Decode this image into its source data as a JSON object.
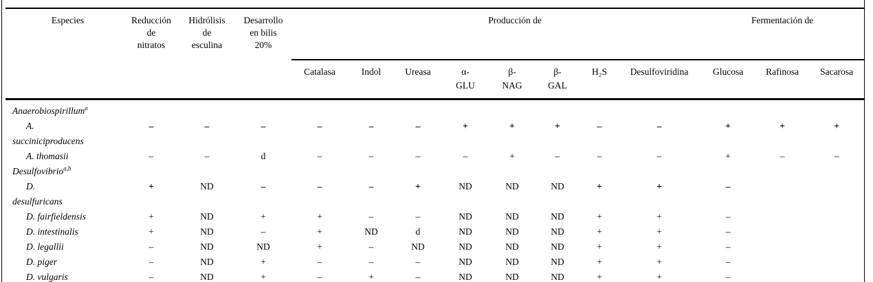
{
  "table": {
    "headers": {
      "especies": "Especies",
      "simple_cols": [
        {
          "id": "reduccion-de-nitratos",
          "lines": [
            "Reducción",
            "de",
            "nitratos"
          ]
        },
        {
          "id": "hidrolisis-de-esculina",
          "lines": [
            "Hidrólisis",
            "de",
            "esculina"
          ]
        },
        {
          "id": "desarrollo-en-bilis-20",
          "lines": [
            "Desarrollo",
            "en bilis",
            "20%"
          ]
        }
      ],
      "spanners": [
        {
          "label": "Producción de",
          "cols": [
            {
              "id": "catalasa",
              "lines": [
                "Catalasa"
              ]
            },
            {
              "id": "indol",
              "lines": [
                "Indol"
              ]
            },
            {
              "id": "ureasa",
              "lines": [
                "Ureasa"
              ]
            },
            {
              "id": "alfa-glu",
              "lines": [
                "α-",
                "GLU"
              ]
            },
            {
              "id": "beta-nag",
              "lines": [
                "β-",
                "NAG"
              ]
            },
            {
              "id": "beta-gal",
              "lines": [
                "β-",
                "GAL"
              ]
            },
            {
              "id": "h2s",
              "lines": [
                "H₂S"
              ]
            },
            {
              "id": "desulfoviridina",
              "lines": [
                "Desulfoviridina"
              ]
            }
          ]
        },
        {
          "label": "Fermentación de",
          "cols": [
            {
              "id": "glucosa",
              "lines": [
                "Glucosa"
              ]
            },
            {
              "id": "rafinosa",
              "lines": [
                "Rafinosa"
              ]
            },
            {
              "id": "sacarosa",
              "lines": [
                "Sacarosa"
              ]
            }
          ]
        }
      ]
    },
    "rows": [
      {
        "id": "anaerobiospirillum",
        "name_lines": [
          "Anaerobiospirillum"
        ],
        "sup": "a",
        "indent": false,
        "bold": false,
        "values": [
          "",
          "",
          "",
          "",
          "",
          "",
          "",
          "",
          "",
          "",
          "",
          "",
          "",
          ""
        ]
      },
      {
        "id": "a-succiniciproducens",
        "name_lines": [
          "A.",
          "succiniciproducens"
        ],
        "sup": "",
        "indent": true,
        "bold": true,
        "values": [
          "–",
          "–",
          "–",
          "–",
          "–",
          "–",
          "+",
          "+",
          "+",
          "–",
          "–",
          "+",
          "+",
          "+"
        ]
      },
      {
        "id": "a-thomasii",
        "name_lines": [
          "A. thomasii"
        ],
        "sup": "",
        "indent": true,
        "bold": false,
        "values": [
          "–",
          "–",
          "d",
          "–",
          "–",
          "–",
          "–",
          "+",
          "–",
          "–",
          "–",
          "+",
          "–",
          "–"
        ]
      },
      {
        "id": "desulfovibrio",
        "name_lines": [
          "Desulfovibrio"
        ],
        "sup": "a,b",
        "indent": false,
        "bold": false,
        "values": [
          "",
          "",
          "",
          "",
          "",
          "",
          "",
          "",
          "",
          "",
          "",
          "",
          "",
          ""
        ]
      },
      {
        "id": "d-desulfuricans",
        "name_lines": [
          "D.",
          "desulfuricans"
        ],
        "sup": "",
        "indent": true,
        "bold": true,
        "values": [
          "+",
          "ND",
          "–",
          "–",
          "–",
          "+",
          "ND",
          "ND",
          "ND",
          "+",
          "+",
          "–",
          "",
          ""
        ]
      },
      {
        "id": "d-fairfieldensis",
        "name_lines": [
          "D. fairfieldensis"
        ],
        "sup": "",
        "indent": true,
        "bold": false,
        "values": [
          "+",
          "ND",
          "+",
          "+",
          "–",
          "–",
          "ND",
          "ND",
          "ND",
          "+",
          "+",
          "–",
          "",
          ""
        ]
      },
      {
        "id": "d-intestinalis",
        "name_lines": [
          "D. intestinalis"
        ],
        "sup": "",
        "indent": true,
        "bold": false,
        "values": [
          "+",
          "ND",
          "–",
          "+",
          "ND",
          "d",
          "ND",
          "ND",
          "ND",
          "+",
          "+",
          "–",
          "",
          ""
        ]
      },
      {
        "id": "d-legallii",
        "name_lines": [
          "D. legallii"
        ],
        "sup": "",
        "indent": true,
        "bold": false,
        "values": [
          "–",
          "ND",
          "ND",
          "+",
          "–",
          "ND",
          "ND",
          "ND",
          "ND",
          "+",
          "+",
          "–",
          "",
          ""
        ]
      },
      {
        "id": "d-piger",
        "name_lines": [
          "D. piger"
        ],
        "sup": "",
        "indent": true,
        "bold": false,
        "values": [
          "–",
          "ND",
          "+",
          "–",
          "–",
          "–",
          "ND",
          "ND",
          "ND",
          "+",
          "+",
          "–",
          "",
          ""
        ]
      },
      {
        "id": "d-vulgaris",
        "name_lines": [
          "D. vulgaris"
        ],
        "sup": "",
        "indent": true,
        "bold": false,
        "values": [
          "–",
          "ND",
          "+",
          "–",
          "+",
          "–",
          "ND",
          "ND",
          "ND",
          "+",
          "+",
          "–",
          "",
          ""
        ]
      }
    ]
  }
}
